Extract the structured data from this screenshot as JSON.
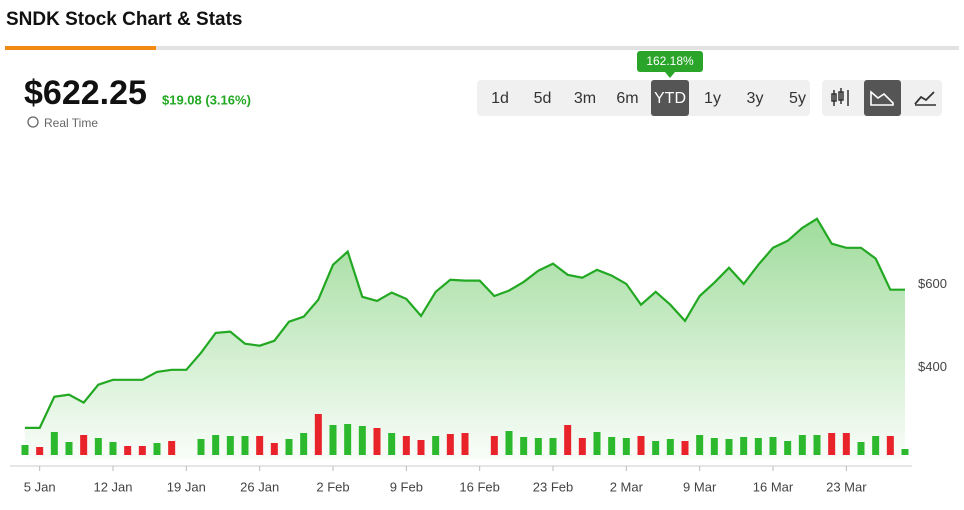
{
  "header": {
    "title": "SNDK Stock Chart & Stats"
  },
  "quote": {
    "price": "$622.25",
    "change": "$19.08 (3.16%)",
    "realtime": "Real Time"
  },
  "periods": {
    "buttons": [
      "1d",
      "5d",
      "3m",
      "6m",
      "YTD",
      "1y",
      "3y",
      "5y"
    ],
    "active": 4,
    "return_label": "162.18%"
  },
  "chart_data": {
    "type": "area",
    "categories": [
      null,
      "5 Jan",
      null,
      null,
      null,
      null,
      "12 Jan",
      null,
      null,
      null,
      null,
      "19 Jan",
      null,
      null,
      null,
      null,
      "26 Jan",
      null,
      null,
      null,
      null,
      "2 Feb",
      null,
      null,
      null,
      null,
      "9 Feb",
      null,
      null,
      null,
      null,
      "16 Feb",
      null,
      null,
      null,
      null,
      "23 Feb",
      null,
      null,
      null,
      null,
      "2 Mar",
      null,
      null,
      null,
      null,
      "9 Mar",
      null,
      null,
      null,
      null,
      "16 Mar",
      null,
      null,
      null,
      null,
      "23 Mar",
      null,
      null,
      null,
      null
    ],
    "values": [
      255,
      255,
      330,
      335,
      316,
      359,
      371,
      371,
      371,
      390,
      395,
      395,
      436,
      484,
      487,
      458,
      453,
      465,
      511,
      523,
      564,
      648,
      680,
      571,
      561,
      581,
      566,
      525,
      583,
      612,
      610,
      610,
      573,
      586,
      607,
      634,
      651,
      624,
      617,
      636,
      622,
      602,
      552,
      583,
      552,
      513,
      573,
      605,
      641,
      602,
      648,
      689,
      706,
      737,
      759,
      699,
      689,
      689,
      663,
      588,
      588
    ],
    "volume": [
      10,
      8,
      23,
      13,
      20,
      17,
      13,
      9,
      9,
      12,
      14,
      null,
      16,
      20,
      19,
      19,
      19,
      12,
      16,
      22,
      41,
      30,
      31,
      29,
      27,
      22,
      19,
      15,
      19,
      21,
      22,
      null,
      19,
      24,
      18,
      17,
      17,
      30,
      17,
      23,
      18,
      17,
      19,
      14,
      16,
      14,
      20,
      17,
      16,
      18,
      17,
      18,
      14,
      20,
      20,
      22,
      22,
      13,
      19,
      19,
      6
    ],
    "volume_up": [
      true,
      false,
      true,
      true,
      false,
      true,
      true,
      false,
      false,
      true,
      false,
      null,
      true,
      true,
      true,
      true,
      false,
      false,
      true,
      true,
      false,
      true,
      true,
      true,
      false,
      true,
      false,
      false,
      true,
      false,
      false,
      null,
      false,
      true,
      true,
      true,
      true,
      false,
      false,
      true,
      true,
      true,
      false,
      true,
      true,
      false,
      true,
      true,
      true,
      true,
      true,
      true,
      true,
      true,
      true,
      false,
      false,
      true,
      true,
      false,
      true
    ],
    "volume_lim": [
      0,
      45
    ],
    "ylim": [
      180,
      920
    ],
    "yticks": [
      {
        "value": 400,
        "label": "$400"
      },
      {
        "value": 600,
        "label": "$600"
      }
    ],
    "color": "#22a822",
    "up_color": "#2db92d",
    "down_color": "#e8232a"
  }
}
